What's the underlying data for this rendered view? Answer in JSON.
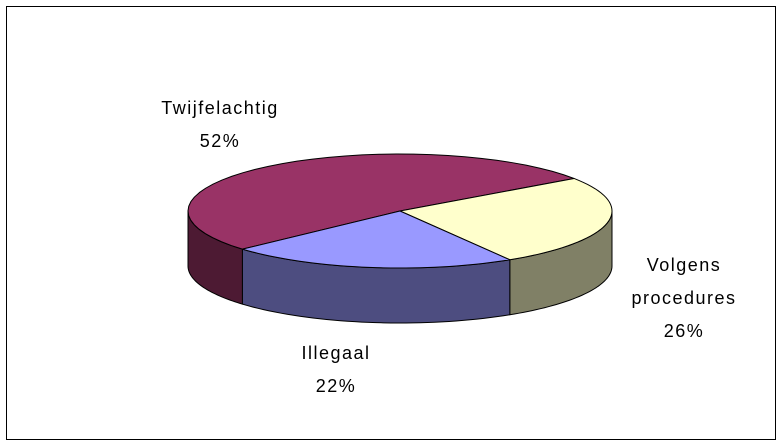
{
  "chart_data": {
    "type": "pie",
    "categories": [
      "Twijfelachtig",
      "Volgens procedures",
      "Illegaal"
    ],
    "values": [
      52,
      26,
      22
    ],
    "value_labels": [
      "52%",
      "26%",
      "22%"
    ],
    "colors": [
      "#993366",
      "#ffffcc",
      "#9999ff"
    ],
    "side_colors": [
      "#4d1a33",
      "#808066",
      "#4d4d80"
    ]
  }
}
